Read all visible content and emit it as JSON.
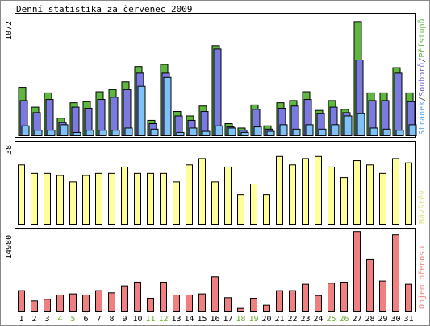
{
  "chart_data": {
    "type": "bar",
    "title": "Denní statistika za červenec 2009",
    "days": [
      "1",
      "2",
      "3",
      "4",
      "5",
      "6",
      "7",
      "8",
      "9",
      "10",
      "11",
      "12",
      "13",
      "14",
      "15",
      "16",
      "17",
      "18",
      "19",
      "20",
      "21",
      "22",
      "23",
      "24",
      "25",
      "26",
      "27",
      "28",
      "29",
      "30",
      "31"
    ],
    "weekend_days": [
      "4",
      "5",
      "11",
      "12",
      "18",
      "19",
      "25",
      "26"
    ],
    "panels": [
      {
        "id": "hits",
        "ymax_label": "1072",
        "ymax": 1072,
        "legend": {
          "pages": "Stránek",
          "files": "Souborů",
          "hits": "Přístupů",
          "sep": "/"
        },
        "series": [
          {
            "name": "Přístupů",
            "color": "#5fb73f",
            "values": [
              440,
              260,
              390,
              160,
              300,
              310,
              400,
              420,
              490,
              630,
              140,
              650,
              220,
              180,
              270,
              820,
              110,
              70,
              280,
              90,
              300,
              320,
              400,
              230,
              320,
              240,
              1040,
              390,
              390,
              620,
              390
            ]
          },
          {
            "name": "Souborů",
            "color": "#7a7ae0",
            "values": [
              320,
              210,
              330,
              120,
              260,
              250,
              330,
              350,
              420,
              570,
              110,
              570,
              180,
              140,
              220,
              790,
              80,
              50,
              240,
              60,
              250,
              270,
              330,
              200,
              260,
              210,
              690,
              320,
              320,
              570,
              310
            ]
          },
          {
            "name": "Stránek",
            "color": "#7fc2f7",
            "values": [
              90,
              50,
              50,
              100,
              30,
              50,
              50,
              50,
              70,
              450,
              60,
              530,
              30,
              70,
              40,
              90,
              70,
              30,
              80,
              40,
              100,
              60,
              100,
              60,
              100,
              180,
              200,
              70,
              60,
              50,
              100
            ]
          }
        ]
      },
      {
        "id": "visits",
        "ymax_label": "38",
        "ymax": 38,
        "legend": "Návštěv",
        "series": [
          {
            "name": "Návštěv",
            "color": "#ffff99",
            "values": [
              28,
              24,
              24,
              23,
              20,
              23,
              24,
              24,
              27,
              24,
              24,
              24,
              20,
              28,
              31,
              20,
              27,
              14,
              19,
              14,
              32,
              28,
              31,
              32,
              27,
              22,
              30,
              28,
              24,
              31,
              29
            ]
          }
        ]
      },
      {
        "id": "traffic",
        "ymax_label": "14980",
        "ymax": 14980,
        "legend": "Objem přenosu",
        "series": [
          {
            "name": "Objem přenosu",
            "color": "#f08080",
            "values": [
              3800,
              1900,
              2200,
              3000,
              3200,
              3000,
              3800,
              3400,
              4700,
              5400,
              2400,
              5400,
              3000,
              3000,
              3200,
              6400,
              2500,
              500,
              2400,
              1100,
              3800,
              3800,
              5000,
              2900,
              5200,
              5400,
              14800,
              9600,
              5600,
              14200,
              5000
            ]
          }
        ]
      }
    ]
  }
}
